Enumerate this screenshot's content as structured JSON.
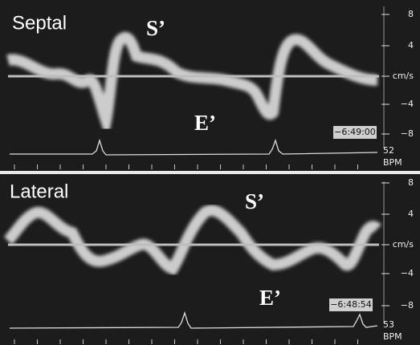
{
  "panels": [
    {
      "title": "Septal",
      "s_label": "S’",
      "e_label": "E’",
      "timestamp": "−6:49:00",
      "heart_rate": "52",
      "hr_unit": "BPM",
      "scale": [
        "8",
        "4",
        "cm/s",
        "−4",
        "−8"
      ]
    },
    {
      "title": "Lateral",
      "s_label": "S’",
      "e_label": "E’",
      "timestamp": "−6:48:54",
      "heart_rate": "53",
      "hr_unit": "BPM",
      "scale": [
        "8",
        "4",
        "cm/s",
        "−4",
        "−8"
      ]
    }
  ]
}
